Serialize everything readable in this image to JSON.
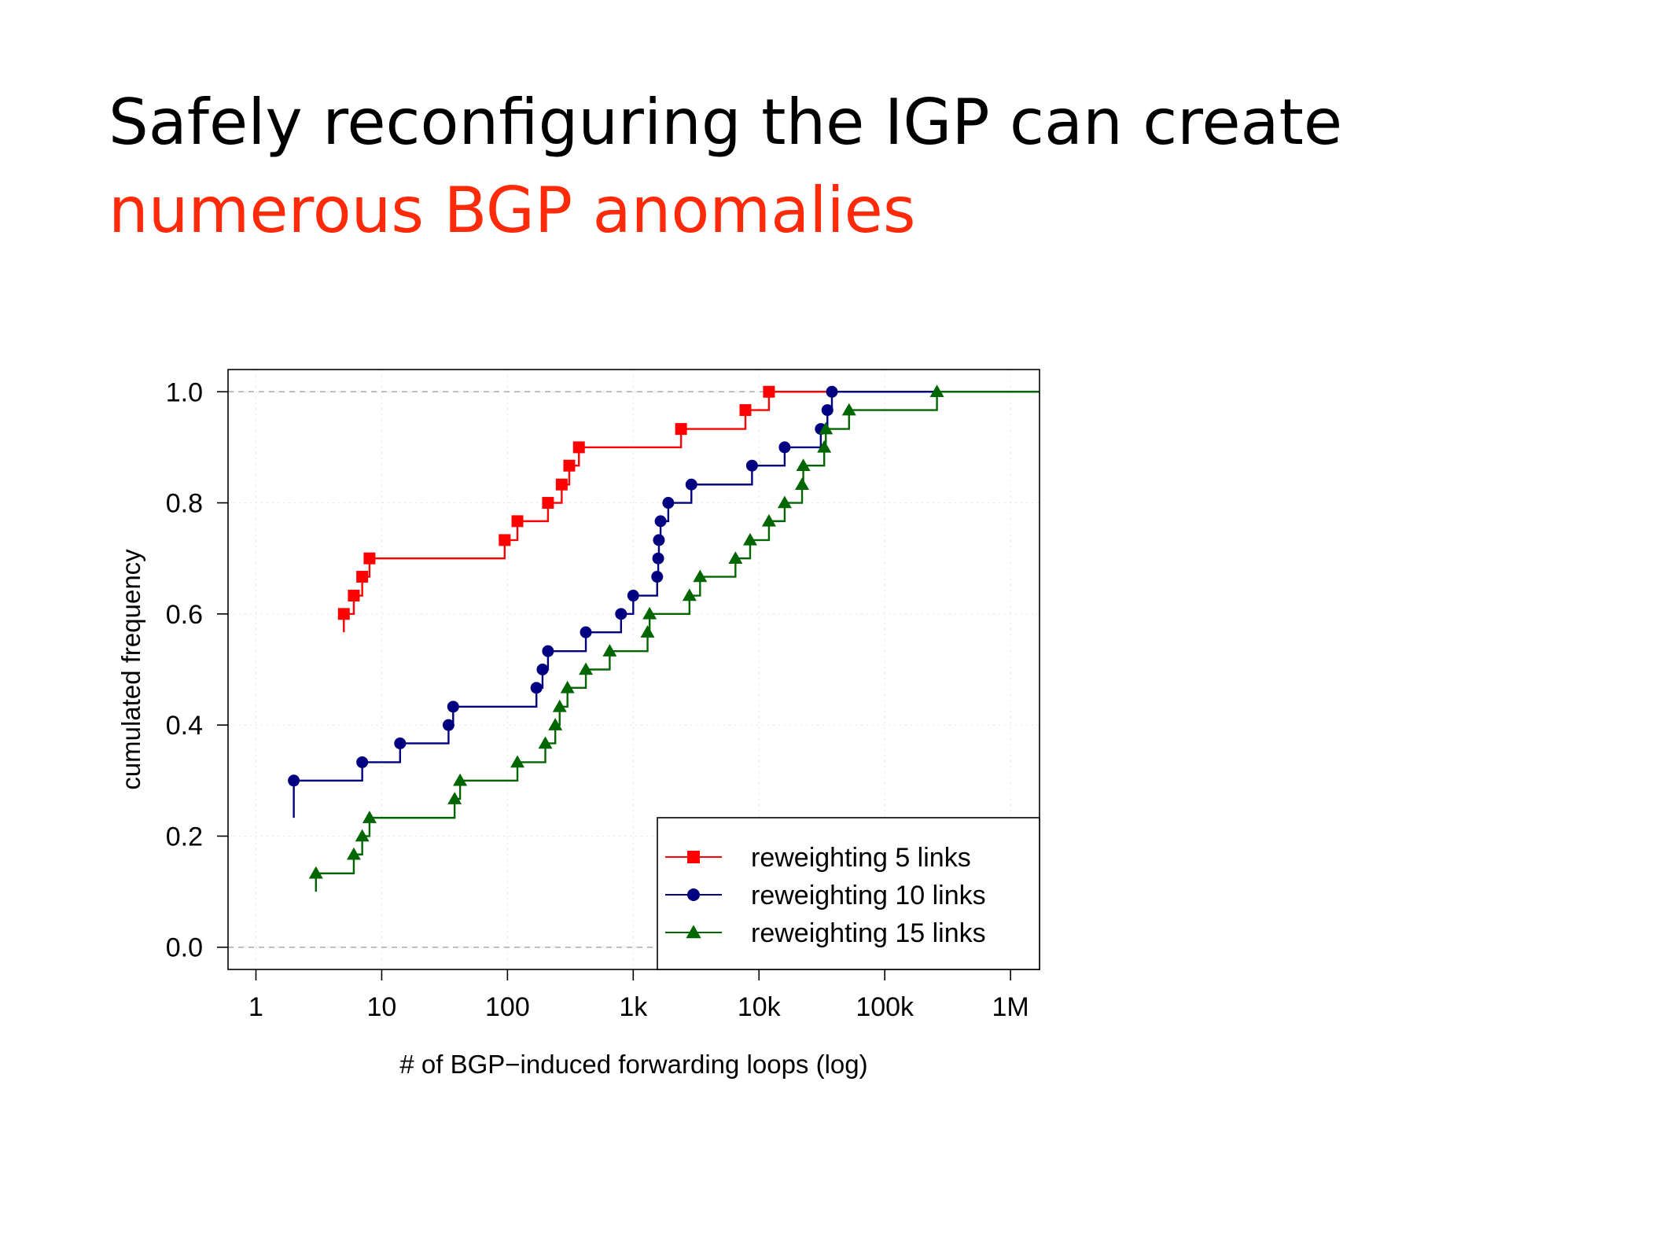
{
  "slide": {
    "title_line1": "Safely reconfiguring the IGP can create",
    "title_line2": "numerous BGP anomalies",
    "title_line2_color": "#ff2a0a"
  },
  "chart_data": {
    "type": "line",
    "step": true,
    "xscale": "log",
    "xlabel": "# of BGP−induced forwarding loops (log)",
    "ylabel": "cumulated frequency",
    "xlim": [
      0.6,
      1700000
    ],
    "ylim": [
      -0.04,
      1.04
    ],
    "xticks": [
      1,
      10,
      100,
      1000,
      10000,
      100000,
      1000000
    ],
    "xtick_labels": [
      "1",
      "10",
      "100",
      "1k",
      "10k",
      "100k",
      "1M"
    ],
    "yticks": [
      0,
      0.2,
      0.4,
      0.6,
      0.8,
      1.0
    ],
    "ytick_labels": [
      "0.0",
      "0.2",
      "0.4",
      "0.6",
      "0.8",
      "1.0"
    ],
    "reference_lines": [
      0,
      1
    ],
    "grid": true,
    "legend_position": "bottom-right",
    "series": [
      {
        "name": "reweighting 5 links",
        "color": "#ff0000",
        "marker": "square",
        "start_y": 0.567,
        "x": [
          5,
          6,
          7,
          8,
          95,
          120,
          210,
          270,
          310,
          370,
          2400,
          7800,
          12000
        ],
        "y": [
          0.6,
          0.633,
          0.667,
          0.7,
          0.733,
          0.767,
          0.8,
          0.833,
          0.867,
          0.9,
          0.933,
          0.967,
          1.0
        ]
      },
      {
        "name": "reweighting 10 links",
        "color": "#000080",
        "marker": "circle",
        "start_y": 0.233,
        "x": [
          2,
          7,
          14,
          34,
          37,
          170,
          190,
          210,
          420,
          800,
          1000,
          1550,
          1580,
          1600,
          1650,
          1900,
          2900,
          8800,
          16000,
          31000,
          35000,
          38000
        ],
        "y": [
          0.3,
          0.333,
          0.367,
          0.4,
          0.433,
          0.467,
          0.5,
          0.533,
          0.567,
          0.6,
          0.633,
          0.667,
          0.7,
          0.733,
          0.767,
          0.8,
          0.833,
          0.867,
          0.9,
          0.933,
          0.967,
          1.0
        ]
      },
      {
        "name": "reweighting 15 links",
        "color": "#006600",
        "marker": "triangle",
        "start_y": 0.1,
        "x": [
          3,
          6,
          7,
          8,
          38,
          42,
          120,
          200,
          240,
          260,
          300,
          420,
          650,
          1300,
          1350,
          2800,
          3400,
          6500,
          8500,
          12000,
          16000,
          22000,
          22500,
          33000,
          34000,
          52000,
          260000
        ],
        "y": [
          0.133,
          0.167,
          0.2,
          0.233,
          0.267,
          0.3,
          0.333,
          0.367,
          0.4,
          0.433,
          0.467,
          0.5,
          0.533,
          0.567,
          0.6,
          0.633,
          0.667,
          0.7,
          0.733,
          0.767,
          0.8,
          0.833,
          0.867,
          0.9,
          0.933,
          0.967,
          1.0
        ]
      }
    ]
  }
}
